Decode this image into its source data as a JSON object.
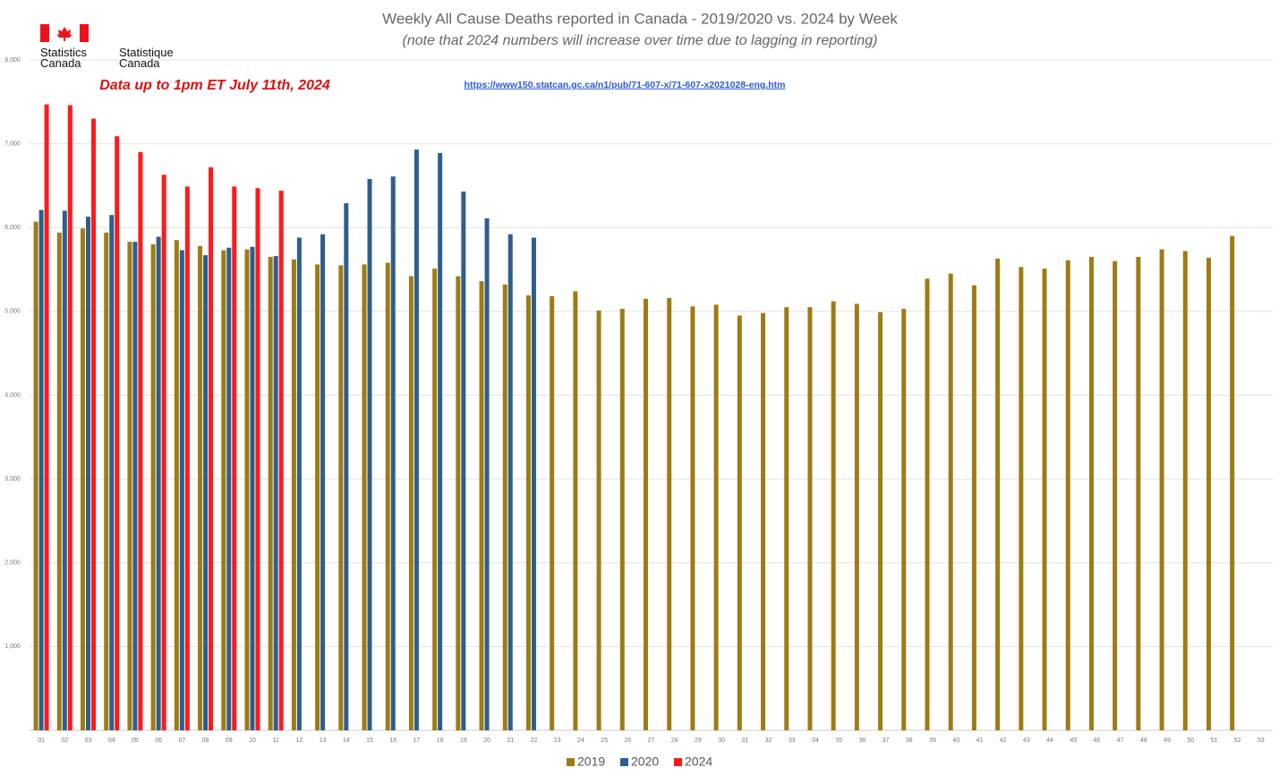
{
  "header": {
    "agency_en": "Statistics Canada",
    "agency_fr": "Statistique Canada"
  },
  "chart_data": {
    "type": "bar",
    "title": "Weekly All Cause Deaths reported in Canada - 2019/2020 vs. 2024 by Week",
    "subtitle": "(note that 2024 numbers will increase over time due to lagging in reporting)",
    "annotations": [
      "Data up to 1pm ET July 11th, 2024",
      "https://www150.statcan.gc.ca/n1/pub/71-607-x/71-607-x2021028-eng.htm"
    ],
    "categories": [
      "01",
      "02",
      "03",
      "04",
      "05",
      "06",
      "07",
      "08",
      "09",
      "10",
      "11",
      "12",
      "13",
      "14",
      "15",
      "16",
      "17",
      "18",
      "19",
      "20",
      "21",
      "22",
      "23",
      "24",
      "25",
      "26",
      "27",
      "28",
      "29",
      "30",
      "31",
      "32",
      "33",
      "34",
      "35",
      "36",
      "37",
      "38",
      "39",
      "40",
      "41",
      "42",
      "43",
      "44",
      "45",
      "46",
      "47",
      "48",
      "49",
      "50",
      "51",
      "52",
      "53"
    ],
    "series": [
      {
        "name": "2019",
        "color": "#9e7c14",
        "values": [
          6070,
          5940,
          5990,
          5940,
          5830,
          5800,
          5850,
          5780,
          5730,
          5740,
          5650,
          5620,
          5560,
          5550,
          5560,
          5580,
          5420,
          5510,
          5420,
          5360,
          5320,
          5190,
          5180,
          5240,
          5010,
          5030,
          5150,
          5160,
          5060,
          5080,
          4950,
          4980,
          5050,
          5050,
          5120,
          5090,
          4990,
          5030,
          5390,
          5450,
          5310,
          5630,
          5530,
          5510,
          5610,
          5650,
          5600,
          5650,
          5740,
          5720,
          5640,
          5900,
          null
        ]
      },
      {
        "name": "2020",
        "color": "#2e5e8e",
        "values": [
          6210,
          6200,
          6130,
          6150,
          5830,
          5890,
          5730,
          5670,
          5760,
          5770,
          5660,
          5880,
          5920,
          6290,
          6580,
          6610,
          6930,
          6890,
          6430,
          6110,
          5920,
          5880,
          null,
          null,
          null,
          null,
          null,
          null,
          null,
          null,
          null,
          null,
          null,
          null,
          null,
          null,
          null,
          null,
          null,
          null,
          null,
          null,
          null,
          null,
          null,
          null,
          null,
          null,
          null,
          null,
          null,
          null,
          null
        ]
      },
      {
        "name": "2024",
        "color": "#ff1a1a",
        "values": [
          7470,
          7460,
          7300,
          7090,
          6900,
          6630,
          6490,
          6720,
          6490,
          6470,
          6440,
          null,
          null,
          null,
          null,
          null,
          null,
          null,
          null,
          null,
          null,
          null,
          null,
          null,
          null,
          null,
          null,
          null,
          null,
          null,
          null,
          null,
          null,
          null,
          null,
          null,
          null,
          null,
          null,
          null,
          null,
          null,
          null,
          null,
          null,
          null,
          null,
          null,
          null,
          null,
          null,
          null,
          null
        ]
      }
    ],
    "ylim": [
      0,
      8000
    ],
    "yticks": [
      {
        "value": 1000,
        "label": "1,000"
      },
      {
        "value": 2000,
        "label": "2,000"
      },
      {
        "value": 3000,
        "label": "3,000"
      },
      {
        "value": 4000,
        "label": "4,000"
      },
      {
        "value": 5000,
        "label": "5,000"
      },
      {
        "value": 6000,
        "label": "6,000"
      },
      {
        "value": 7000,
        "label": "7,000"
      },
      {
        "value": 8000,
        "label": "8,000"
      }
    ],
    "grid": true,
    "legend": "bottom"
  }
}
